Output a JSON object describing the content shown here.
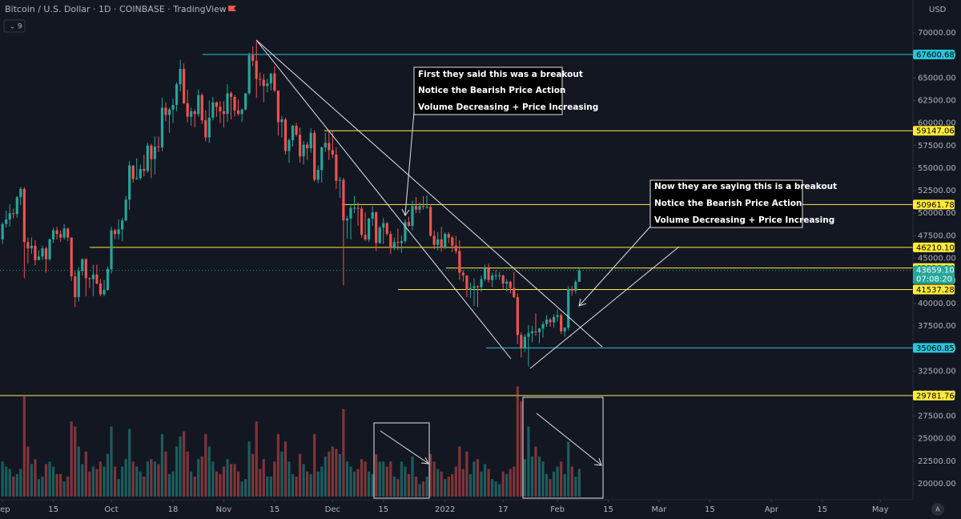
{
  "chart_data": {
    "type": "candlestick",
    "title": "Bitcoin / U.S. Dollar · 1D · COINBASE · TradingView",
    "hidden_indicators": 9,
    "currency": "USD",
    "autoscale_button": "A",
    "up_color": "#26a69a",
    "down_color": "#ef5350",
    "xlim": [
      -0.7,
      251
    ],
    "ylim": [
      20000,
      70000
    ],
    "xticks": [
      {
        "value": 0,
        "label": "Sep"
      },
      {
        "value": 14,
        "label": "15"
      },
      {
        "value": 30,
        "label": "Oct"
      },
      {
        "value": 47,
        "label": "18"
      },
      {
        "value": 61,
        "label": "Nov"
      },
      {
        "value": 75,
        "label": "15"
      },
      {
        "value": 91,
        "label": "Dec"
      },
      {
        "value": 105,
        "label": "15"
      },
      {
        "value": 122,
        "label": "2022"
      },
      {
        "value": 138,
        "label": "17"
      },
      {
        "value": 153,
        "label": "Feb"
      },
      {
        "value": 167,
        "label": "15"
      },
      {
        "value": 181,
        "label": "Mar"
      },
      {
        "value": 195,
        "label": "15"
      },
      {
        "value": 212,
        "label": "Apr"
      },
      {
        "value": 226,
        "label": "15"
      },
      {
        "value": 242,
        "label": "May"
      }
    ],
    "yticks": [
      {
        "value": 20000,
        "label": "20000.00"
      },
      {
        "value": 22500,
        "label": "22500.00"
      },
      {
        "value": 25000,
        "label": "25000.00"
      },
      {
        "value": 27500,
        "label": "27500.00"
      },
      {
        "value": 30000,
        "label": "30000.00"
      },
      {
        "value": 32500,
        "label": "32500.00"
      },
      {
        "value": 35000,
        "label": "35000.00"
      },
      {
        "value": 37500,
        "label": "37500.00"
      },
      {
        "value": 40000,
        "label": "40000.00"
      },
      {
        "value": 42500,
        "label": "42500.00"
      },
      {
        "value": 45000,
        "label": "45000.00"
      },
      {
        "value": 47500,
        "label": "47500.00"
      },
      {
        "value": 50000,
        "label": "50000.00"
      },
      {
        "value": 52500,
        "label": "52500.00"
      },
      {
        "value": 55000,
        "label": "55000.00"
      },
      {
        "value": 57500,
        "label": "57500.00"
      },
      {
        "value": 60000,
        "label": "60000.00"
      },
      {
        "value": 62500,
        "label": "62500.00"
      },
      {
        "value": 65000,
        "label": "65000.00"
      },
      {
        "value": 67500,
        "label": "67500.00"
      },
      {
        "value": 70000,
        "label": "70000.00"
      }
    ],
    "x": [
      0,
      1,
      2,
      3,
      4,
      5,
      6,
      7,
      8,
      9,
      10,
      11,
      12,
      13,
      14,
      15,
      16,
      17,
      18,
      19,
      20,
      21,
      22,
      23,
      24,
      25,
      26,
      27,
      28,
      29,
      30,
      31,
      32,
      33,
      34,
      35,
      36,
      37,
      38,
      39,
      40,
      41,
      42,
      43,
      44,
      45,
      46,
      47,
      48,
      49,
      50,
      51,
      52,
      53,
      54,
      55,
      56,
      57,
      58,
      59,
      60,
      61,
      62,
      63,
      64,
      65,
      66,
      67,
      68,
      69,
      70,
      71,
      72,
      73,
      74,
      75,
      76,
      77,
      78,
      79,
      80,
      81,
      82,
      83,
      84,
      85,
      86,
      87,
      88,
      89,
      90,
      91,
      92,
      93,
      94,
      95,
      96,
      97,
      98,
      99,
      100,
      101,
      102,
      103,
      104,
      105,
      106,
      107,
      108,
      109,
      110,
      111,
      112,
      113,
      114,
      115,
      116,
      117,
      118,
      119,
      120,
      121,
      122,
      123,
      124,
      125,
      126,
      127,
      128,
      129,
      130,
      131,
      132,
      133,
      134,
      135,
      136,
      137,
      138,
      139,
      140,
      141,
      142,
      143,
      144,
      145,
      146,
      147,
      148,
      149,
      150,
      151,
      152,
      153,
      154,
      155,
      156,
      157,
      158,
      159
    ],
    "ohlc": [
      [
        47100,
        49000,
        46600,
        48800
      ],
      [
        48800,
        50300,
        48400,
        49300
      ],
      [
        49300,
        51000,
        48500,
        50000
      ],
      [
        50000,
        50500,
        49400,
        49900
      ],
      [
        49900,
        51900,
        49500,
        51800
      ],
      [
        51800,
        52900,
        50900,
        52700
      ],
      [
        52700,
        52900,
        42800,
        46800
      ],
      [
        46800,
        47300,
        44400,
        46100
      ],
      [
        46100,
        47300,
        45500,
        46400
      ],
      [
        46400,
        47000,
        44200,
        44800
      ],
      [
        44800,
        45900,
        44800,
        45200
      ],
      [
        45200,
        46400,
        44800,
        46100
      ],
      [
        46100,
        46300,
        43400,
        44900
      ],
      [
        44900,
        47200,
        44700,
        47100
      ],
      [
        47100,
        48400,
        46700,
        48100
      ],
      [
        48100,
        48500,
        47100,
        47700
      ],
      [
        47700,
        48100,
        46800,
        47300
      ],
      [
        47300,
        48800,
        47100,
        48300
      ],
      [
        48300,
        48400,
        46900,
        47300
      ],
      [
        47300,
        47300,
        42500,
        43000
      ],
      [
        43000,
        43600,
        39600,
        40700
      ],
      [
        40700,
        44000,
        40200,
        43600
      ],
      [
        43600,
        45000,
        43100,
        44900
      ],
      [
        44900,
        45000,
        40800,
        42800
      ],
      [
        42800,
        42900,
        41700,
        42700
      ],
      [
        42700,
        44300,
        40800,
        43200
      ],
      [
        43200,
        44300,
        42100,
        42200
      ],
      [
        42200,
        42700,
        40800,
        41000
      ],
      [
        41000,
        42600,
        40800,
        41500
      ],
      [
        41500,
        44100,
        41400,
        43800
      ],
      [
        43800,
        48500,
        43300,
        48100
      ],
      [
        48100,
        48300,
        47100,
        47700
      ],
      [
        47700,
        49300,
        47100,
        48200
      ],
      [
        48200,
        49500,
        46900,
        49200
      ],
      [
        49200,
        51900,
        49100,
        51500
      ],
      [
        51500,
        55800,
        50400,
        55300
      ],
      [
        55300,
        55300,
        53400,
        53800
      ],
      [
        53800,
        56100,
        53700,
        53900
      ],
      [
        53900,
        55400,
        53700,
        54900
      ],
      [
        54900,
        56500,
        54100,
        54700
      ],
      [
        54700,
        57800,
        54500,
        57500
      ],
      [
        57500,
        57700,
        53900,
        56000
      ],
      [
        56000,
        58500,
        54300,
        57400
      ],
      [
        57400,
        58500,
        56800,
        57300
      ],
      [
        57300,
        62800,
        56900,
        61700
      ],
      [
        61700,
        62300,
        60200,
        60900
      ],
      [
        60900,
        61700,
        58900,
        61500
      ],
      [
        61500,
        62700,
        60000,
        62000
      ],
      [
        62000,
        64500,
        61300,
        64300
      ],
      [
        64300,
        67000,
        63500,
        66000
      ],
      [
        66000,
        66600,
        62100,
        62200
      ],
      [
        62200,
        63700,
        60100,
        60700
      ],
      [
        60700,
        61700,
        59700,
        61300
      ],
      [
        61300,
        61500,
        59500,
        61000
      ],
      [
        61000,
        63700,
        60700,
        63100
      ],
      [
        63100,
        63300,
        59900,
        60300
      ],
      [
        60300,
        61400,
        58000,
        58400
      ],
      [
        58400,
        62500,
        57800,
        60600
      ],
      [
        60600,
        62900,
        60300,
        62300
      ],
      [
        62300,
        62400,
        60700,
        61800
      ],
      [
        61800,
        62400,
        60000,
        61300
      ],
      [
        61300,
        62400,
        59500,
        61000
      ],
      [
        61000,
        64300,
        60100,
        63300
      ],
      [
        63300,
        63500,
        60400,
        62900
      ],
      [
        62900,
        63100,
        60700,
        61400
      ],
      [
        61400,
        62600,
        60800,
        61000
      ],
      [
        61000,
        61600,
        60100,
        61500
      ],
      [
        61500,
        63300,
        61400,
        63300
      ],
      [
        63300,
        67800,
        63100,
        67500
      ],
      [
        67500,
        68500,
        66300,
        66900
      ],
      [
        66900,
        69000,
        62800,
        64900
      ],
      [
        64900,
        65600,
        64100,
        64800
      ],
      [
        64800,
        65400,
        62300,
        64100
      ],
      [
        64100,
        64900,
        63400,
        64400
      ],
      [
        64400,
        65500,
        63600,
        65500
      ],
      [
        65500,
        66300,
        63400,
        63600
      ],
      [
        63600,
        63600,
        58600,
        60100
      ],
      [
        60100,
        60800,
        58400,
        60400
      ],
      [
        60400,
        60600,
        56500,
        56900
      ],
      [
        56900,
        58300,
        55600,
        58100
      ],
      [
        58100,
        59800,
        57400,
        59700
      ],
      [
        59700,
        60000,
        58500,
        58700
      ],
      [
        58700,
        59500,
        55600,
        56300
      ],
      [
        56300,
        58000,
        55400,
        57600
      ],
      [
        57600,
        57900,
        55900,
        57200
      ],
      [
        57200,
        59400,
        56700,
        58900
      ],
      [
        58900,
        59200,
        53500,
        53700
      ],
      [
        53700,
        55300,
        53300,
        54800
      ],
      [
        54800,
        57400,
        53400,
        57300
      ],
      [
        57300,
        58900,
        56800,
        57800
      ],
      [
        57800,
        59200,
        55900,
        57000
      ],
      [
        57000,
        59100,
        56100,
        56500
      ],
      [
        56500,
        57300,
        52700,
        53600
      ],
      [
        53600,
        54000,
        51700,
        53700
      ],
      [
        53700,
        53900,
        42000,
        49200
      ],
      [
        49200,
        49700,
        47200,
        49400
      ],
      [
        49400,
        51000,
        47100,
        50600
      ],
      [
        50600,
        51900,
        50000,
        50600
      ],
      [
        50600,
        51200,
        48600,
        50500
      ],
      [
        50500,
        50800,
        47300,
        47600
      ],
      [
        47600,
        50100,
        46900,
        47100
      ],
      [
        47100,
        49500,
        46800,
        49400
      ],
      [
        49400,
        50800,
        48600,
        50100
      ],
      [
        50100,
        50200,
        45800,
        46700
      ],
      [
        46700,
        48600,
        46600,
        48400
      ],
      [
        48400,
        49500,
        46600,
        48900
      ],
      [
        48900,
        49000,
        47500,
        47700
      ],
      [
        47700,
        48000,
        45500,
        46200
      ],
      [
        46200,
        47300,
        45900,
        46800
      ],
      [
        46800,
        48300,
        45900,
        46700
      ],
      [
        46700,
        47500,
        45600,
        46900
      ],
      [
        46900,
        49300,
        46700,
        49000
      ],
      [
        49000,
        49600,
        48500,
        48600
      ],
      [
        48600,
        51400,
        48100,
        50800
      ],
      [
        50800,
        51800,
        50000,
        50400
      ],
      [
        50400,
        51200,
        50000,
        50800
      ],
      [
        50800,
        51900,
        50400,
        50700
      ],
      [
        50700,
        52000,
        50500,
        50700
      ],
      [
        50700,
        51000,
        47400,
        47500
      ],
      [
        47500,
        48100,
        46000,
        46500
      ],
      [
        46500,
        47900,
        45900,
        47100
      ],
      [
        47100,
        48500,
        45700,
        46200
      ],
      [
        46200,
        47900,
        46000,
        47700
      ],
      [
        47700,
        47900,
        46700,
        47300
      ],
      [
        47300,
        47500,
        45700,
        46400
      ],
      [
        46400,
        47500,
        45500,
        45800
      ],
      [
        45800,
        47000,
        42600,
        43400
      ],
      [
        43400,
        43700,
        42400,
        43100
      ],
      [
        43100,
        43100,
        40700,
        41500
      ],
      [
        41500,
        42300,
        40600,
        41700
      ],
      [
        41700,
        42800,
        39700,
        41900
      ],
      [
        41900,
        42000,
        39600,
        41800
      ],
      [
        41800,
        43100,
        41300,
        42700
      ],
      [
        42700,
        44300,
        42500,
        43900
      ],
      [
        43900,
        44400,
        42300,
        42600
      ],
      [
        42600,
        43400,
        41800,
        43100
      ],
      [
        43100,
        43700,
        42600,
        43100
      ],
      [
        43100,
        43500,
        42600,
        43100
      ],
      [
        43100,
        43200,
        41600,
        42200
      ],
      [
        42200,
        42700,
        41300,
        42400
      ],
      [
        42400,
        42500,
        41100,
        41700
      ],
      [
        41700,
        43500,
        40600,
        40700
      ],
      [
        40700,
        41100,
        35500,
        36500
      ],
      [
        36500,
        36800,
        34000,
        35100
      ],
      [
        35100,
        36600,
        34600,
        36300
      ],
      [
        36300,
        37600,
        33000,
        36700
      ],
      [
        36700,
        37500,
        35700,
        36900
      ],
      [
        36900,
        38900,
        36400,
        36800
      ],
      [
        36800,
        37300,
        35600,
        37200
      ],
      [
        37200,
        38000,
        36200,
        37700
      ],
      [
        37700,
        38700,
        37400,
        38200
      ],
      [
        38200,
        38400,
        37400,
        37900
      ],
      [
        37900,
        38800,
        37300,
        38500
      ],
      [
        38500,
        39300,
        38000,
        38700
      ],
      [
        38700,
        38900,
        36600,
        36900
      ],
      [
        36900,
        37400,
        36300,
        37300
      ],
      [
        37300,
        41900,
        37000,
        41600
      ],
      [
        41600,
        41900,
        40900,
        41400
      ],
      [
        41400,
        42600,
        41100,
        42400
      ],
      [
        42400,
        44000,
        42400,
        43659.1
      ]
    ],
    "volume": [
      14000,
      12000,
      11000,
      8000,
      9000,
      11000,
      40000,
      20000,
      13000,
      15000,
      7000,
      8000,
      13000,
      14000,
      12000,
      9000,
      9000,
      6000,
      8000,
      30000,
      28000,
      20000,
      13000,
      18000,
      10000,
      12000,
      11000,
      14000,
      12000,
      17000,
      28000,
      12000,
      7000,
      12000,
      15000,
      27000,
      14000,
      12000,
      10000,
      8000,
      14000,
      15000,
      14000,
      13000,
      25000,
      18000,
      9000,
      10000,
      20000,
      24000,
      26000,
      18000,
      10000,
      8000,
      15000,
      16000,
      25000,
      20000,
      14000,
      10000,
      9000,
      12000,
      15000,
      13000,
      13000,
      10000,
      6000,
      7000,
      22000,
      17000,
      30000,
      11000,
      15000,
      8000,
      8000,
      14000,
      25000,
      18000,
      22000,
      14000,
      9000,
      8000,
      17000,
      13000,
      10000,
      9000,
      25000,
      10000,
      12000,
      16000,
      18000,
      20000,
      19000,
      17000,
      35000,
      14000,
      12000,
      10000,
      11000,
      15000,
      14000,
      10000,
      9000,
      17000,
      14000,
      14000,
      12000,
      14000,
      8000,
      7000,
      14000,
      12000,
      9000,
      16000,
      8000,
      5000,
      6000,
      8000,
      17000,
      14000,
      11000,
      10000,
      7000,
      8000,
      9000,
      12000,
      20000,
      11000,
      18000,
      9000,
      14000,
      15000,
      10000,
      13000,
      11000,
      7000,
      6000,
      5000,
      10000,
      9000,
      11000,
      12000,
      44000,
      38000,
      15000,
      28000,
      16000,
      20000,
      16000,
      14000,
      9000,
      7000,
      10000,
      12000,
      14000,
      9000,
      22000,
      12000,
      8000,
      11000
    ],
    "levels": [
      {
        "value": 67600.68,
        "color": "#26c6da"
      },
      {
        "value": 59147.06,
        "color": "#ffeb3b"
      },
      {
        "value": 50961.78,
        "color": "#ffeb3b"
      },
      {
        "value": 46210.1,
        "label": "46210.10",
        "color": "#ffeb3b"
      },
      {
        "value": 43926.34,
        "color": "#ffeb3b"
      },
      {
        "value": 41537.28,
        "color": "#ffeb3b"
      },
      {
        "value": 35060.85,
        "color": "#26c6da"
      },
      {
        "value": 29781.76,
        "color": "#ffeb3b"
      }
    ],
    "last_price": {
      "value": 43659.1,
      "label": "43659.10",
      "countdown": "07:08:20"
    },
    "annotations": [
      {
        "lines": [
          "First they said this was a breakout",
          "Notice the Bearish Price Action",
          "Volume Decreasing + Price Increasing"
        ]
      },
      {
        "lines": [
          "Now they are saying this is a breakout",
          "Notice the Bearish Price Action",
          "Volume Decreasing + Price Increasing"
        ]
      }
    ]
  }
}
